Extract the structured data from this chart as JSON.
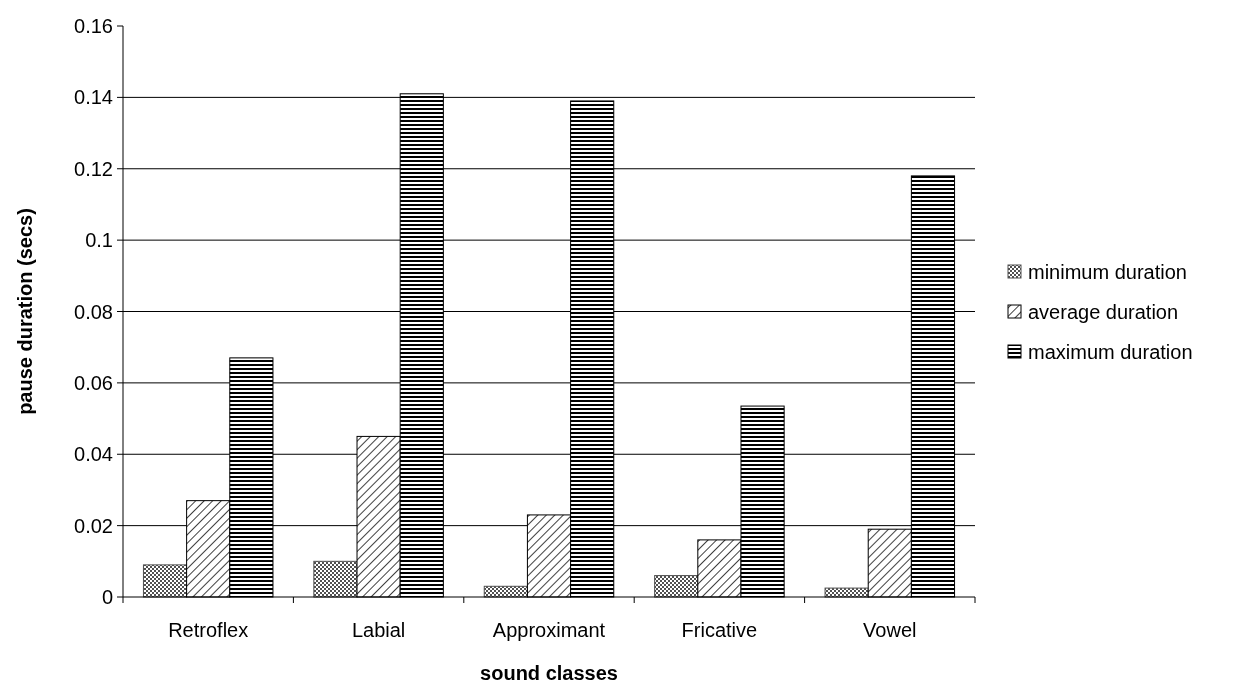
{
  "chart_data": {
    "type": "bar",
    "xlabel": "sound classes",
    "ylabel": "pause duration (secs)",
    "categories": [
      "Retroflex",
      "Labial",
      "Approximant",
      "Fricative",
      "Vowel"
    ],
    "series": [
      {
        "name": "minimum duration",
        "color": "#505050",
        "values": [
          0.009,
          0.01,
          0.003,
          0.006,
          0.0025
        ]
      },
      {
        "name": "average duration",
        "color": "#000000",
        "values": [
          0.027,
          0.045,
          0.023,
          0.016,
          0.019
        ]
      },
      {
        "name": "maximum duration",
        "color": "#000000",
        "values": [
          0.067,
          0.141,
          0.139,
          0.0535,
          0.118
        ]
      }
    ],
    "ylim": [
      0,
      0.16
    ],
    "yticks": [
      0,
      0.02,
      0.04,
      0.06,
      0.08,
      0.1,
      0.12,
      0.14,
      0.16
    ],
    "grid": "y",
    "legend": "right"
  }
}
